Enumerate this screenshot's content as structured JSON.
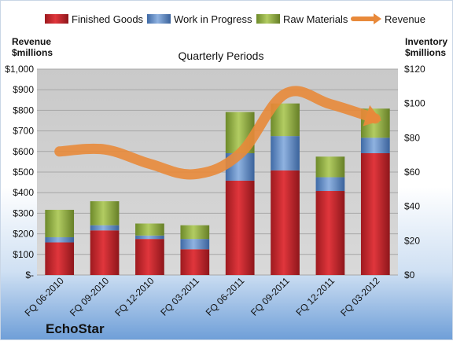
{
  "chart_data": {
    "type": "bar",
    "stacked": true,
    "title": "Quarterly Periods",
    "brand": "EchoStar",
    "left_axis": {
      "title_line1": "Revenue",
      "title_line2": "$millions",
      "range": [
        0,
        1000
      ],
      "step": 100,
      "ticks": [
        "$-",
        "$100",
        "$200",
        "$300",
        "$400",
        "$500",
        "$600",
        "$700",
        "$800",
        "$900",
        "$1,000"
      ]
    },
    "right_axis": {
      "title_line1": "Inventory",
      "title_line2": "$millions",
      "range": [
        0,
        120
      ],
      "step": 20,
      "ticks": [
        "$0",
        "$20",
        "$40",
        "$60",
        "$80",
        "$100",
        "$120"
      ]
    },
    "categories": [
      "FQ 06-2010",
      "FQ 09-2010",
      "FQ 12-2010",
      "FQ 03-2011",
      "FQ 06-2011",
      "FQ 09-2011",
      "FQ 12-2011",
      "FQ 03-2012"
    ],
    "bar_series": [
      {
        "name": "Finished Goods",
        "color": "#c0272d",
        "values": [
          19,
          26,
          21,
          15,
          55,
          61,
          49,
          71
        ]
      },
      {
        "name": "Work in Progress",
        "color": "#5b87c5",
        "values": [
          3,
          3,
          2,
          6,
          16,
          20,
          8,
          9
        ]
      },
      {
        "name": "Raw Materials",
        "color": "#8fad3f",
        "values": [
          16,
          14,
          7,
          8,
          24,
          19,
          12,
          17
        ]
      }
    ],
    "line_series": {
      "name": "Revenue",
      "color": "#e8893a",
      "axis": "left",
      "values": [
        600,
        610,
        540,
        490,
        590,
        880,
        830,
        760
      ]
    },
    "legend_position": "top",
    "grid": true
  }
}
